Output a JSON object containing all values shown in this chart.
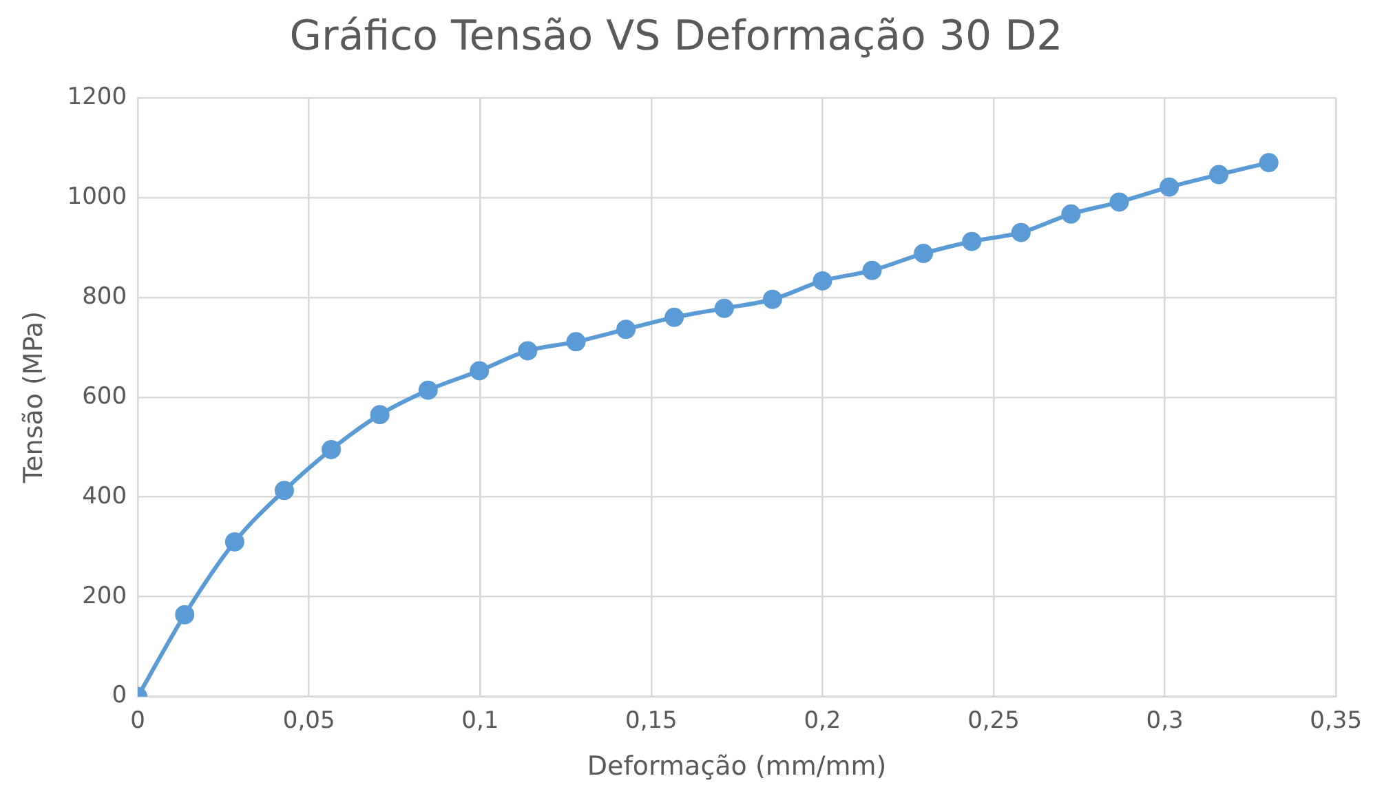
{
  "chart_data": {
    "type": "line",
    "title": "Gráfico Tensão VS Deformação 30 D2",
    "xlabel": "Deformação (mm/mm)",
    "ylabel": "Tensão (MPa)",
    "series": [
      {
        "color": "#5b9bd5",
        "x": [
          0,
          0.0137,
          0.0283,
          0.0428,
          0.0565,
          0.0707,
          0.0848,
          0.0998,
          0.1139,
          0.128,
          0.1426,
          0.1567,
          0.1713,
          0.1854,
          0.2,
          0.2145,
          0.2295,
          0.2436,
          0.258,
          0.2726,
          0.2867,
          0.3013,
          0.3158,
          0.3304
        ],
        "values": [
          0,
          164,
          310,
          413,
          495,
          565,
          614,
          653,
          693,
          711,
          736,
          760,
          778,
          796,
          833,
          854,
          888,
          912,
          930,
          967,
          991,
          1021,
          1046,
          1070
        ]
      }
    ],
    "xlim": [
      0,
      0.35
    ],
    "xticks": [
      0,
      {
        "value": 0.05,
        "label": "0,05"
      },
      {
        "value": 0.1,
        "label": "0,1"
      },
      {
        "value": 0.15,
        "label": "0,15"
      },
      {
        "value": 0.2,
        "label": "0,2"
      },
      {
        "value": 0.25,
        "label": "0,25"
      },
      {
        "value": 0.3,
        "label": "0,3"
      },
      {
        "value": 0.35,
        "label": "0,35"
      }
    ],
    "ylim": [
      0,
      1200
    ],
    "yticks": [
      0,
      200,
      400,
      600,
      800,
      1000,
      1200
    ],
    "grid": true,
    "legend": false,
    "marker": "circle",
    "line_style": "solid"
  }
}
